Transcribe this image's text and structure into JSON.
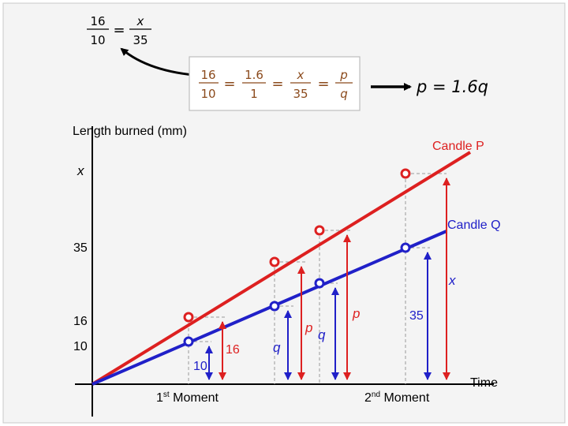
{
  "colors": {
    "candle_p": "#dd2020",
    "candle_q": "#2020c8",
    "fraction_text": "#8b4a1c",
    "axis": "#000000",
    "box_border": "#b8b8b8",
    "background": "#f4f4f4",
    "guide": "#999999"
  },
  "top_fraction": {
    "num1": "16",
    "den1": "10",
    "eq": "=",
    "num2": "x",
    "den2": "35"
  },
  "chain": {
    "f1_num": "16",
    "f1_den": "10",
    "f2_num": "1.6",
    "f2_den": "1",
    "f3_num": "x",
    "f3_den": "35",
    "f4_num": "p",
    "f4_den": "q",
    "eq": "="
  },
  "result": "p = 1.6q",
  "axes": {
    "ylabel": "Length burned (mm)",
    "xlabel": "Time"
  },
  "y_ticks": {
    "x": "x",
    "t35": "35",
    "t16": "16",
    "t10": "10"
  },
  "series": {
    "p_label": "Candle P",
    "q_label": "Candle Q"
  },
  "moments": {
    "first_prefix": "1",
    "first_sup": "st",
    "first_suffix": " Moment",
    "second_prefix": "2",
    "second_sup": "nd",
    "second_suffix": " Moment"
  },
  "measure_labels": {
    "m16": "16",
    "m10": "10",
    "q": "q",
    "p": "p",
    "p2": "p",
    "q2": "q",
    "x": "x",
    "m35": "35"
  }
}
